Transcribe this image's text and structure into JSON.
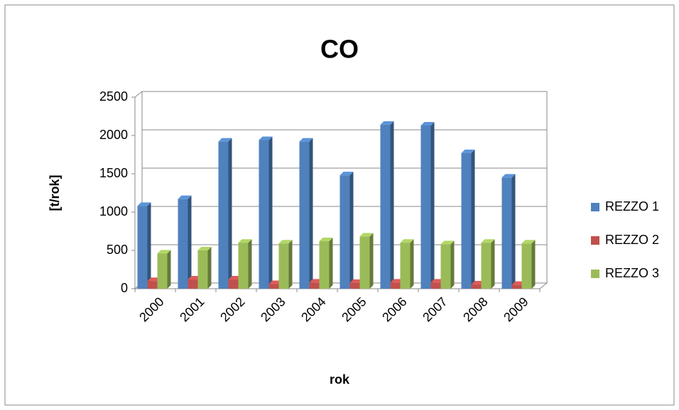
{
  "chart_data": {
    "type": "bar3d",
    "title": "CO",
    "x_label": "rok",
    "y_label": "[t/rok]",
    "categories": [
      "2000",
      "2001",
      "2002",
      "2003",
      "2004",
      "2005",
      "2006",
      "2007",
      "2008",
      "2009"
    ],
    "series": [
      {
        "name": "REZZO 1",
        "color": "#4f81bd",
        "values": [
          1080,
          1170,
          1920,
          1940,
          1920,
          1480,
          2140,
          2130,
          1770,
          1450
        ]
      },
      {
        "name": "REZZO 2",
        "color": "#c0504d",
        "values": [
          100,
          120,
          120,
          60,
          80,
          75,
          80,
          80,
          55,
          50
        ]
      },
      {
        "name": "REZZO 3",
        "color": "#9bbb59",
        "values": [
          460,
          500,
          600,
          590,
          620,
          680,
          600,
          580,
          600,
          590
        ]
      }
    ],
    "ylim": [
      0,
      2500
    ],
    "yticks": [
      0,
      500,
      1000,
      1500,
      2000,
      2500
    ],
    "grid": true,
    "legend": "right"
  }
}
